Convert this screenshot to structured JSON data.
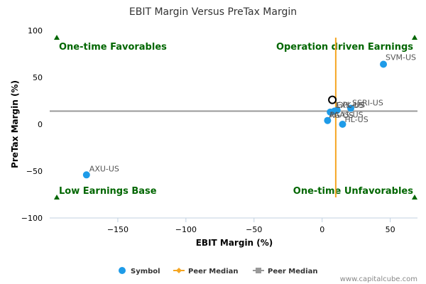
{
  "chart_data": {
    "type": "scatter",
    "title": "EBIT Margin Versus PreTax Margin",
    "xlabel": "EBIT Margin (%)",
    "ylabel": "PreTax Margin (%)",
    "xlim": [
      -200,
      70
    ],
    "ylim": [
      -100,
      100
    ],
    "xticks": [
      -150,
      -100,
      -50,
      0,
      50
    ],
    "yticks": [
      100,
      50,
      0,
      -50,
      -100
    ],
    "tick_labels": {
      "x": [
        "−150",
        "−100",
        "−50",
        "0",
        "50"
      ],
      "y": [
        "100",
        "50",
        "0",
        "−50",
        "−100"
      ]
    },
    "grid": false,
    "points": [
      {
        "label": "SVM-US",
        "x": 45,
        "y": 64
      },
      {
        "label": "AXU-US",
        "x": -173,
        "y": -54
      },
      {
        "label": "GPL-US",
        "x": 9,
        "y": 14
      },
      {
        "label": "EXK-US",
        "x": 11,
        "y": 15
      },
      {
        "label": "SSRI-US",
        "x": 21,
        "y": 17
      },
      {
        "label": "AG-US",
        "x": 6,
        "y": 13
      },
      {
        "label": "PAAS-US",
        "x": 4,
        "y": 4
      },
      {
        "label": "HL-US",
        "x": 15,
        "y": 0
      }
    ],
    "highlight": {
      "label": "",
      "x": 7.5,
      "y": 26
    },
    "peer_median_x": 10,
    "peer_median_y": 14,
    "quadrant_labels": {
      "top_left": "One-time Favorables",
      "top_right": "Operation driven Earnings",
      "bottom_left": "Low Earnings Base",
      "bottom_right": "One-time Unfavorables"
    },
    "legend": {
      "position": "bottom",
      "items": [
        {
          "name": "Symbol",
          "color": "#1e9be8"
        },
        {
          "name": "Peer Median",
          "color": "#f5a623"
        },
        {
          "name": "Peer Median",
          "color": "#999999"
        }
      ]
    }
  },
  "credit": "www.capitalcube.com",
  "colors": {
    "point": "#1e9be8",
    "vline": "#f5a623",
    "hline": "#999999",
    "quad": "#006600"
  }
}
